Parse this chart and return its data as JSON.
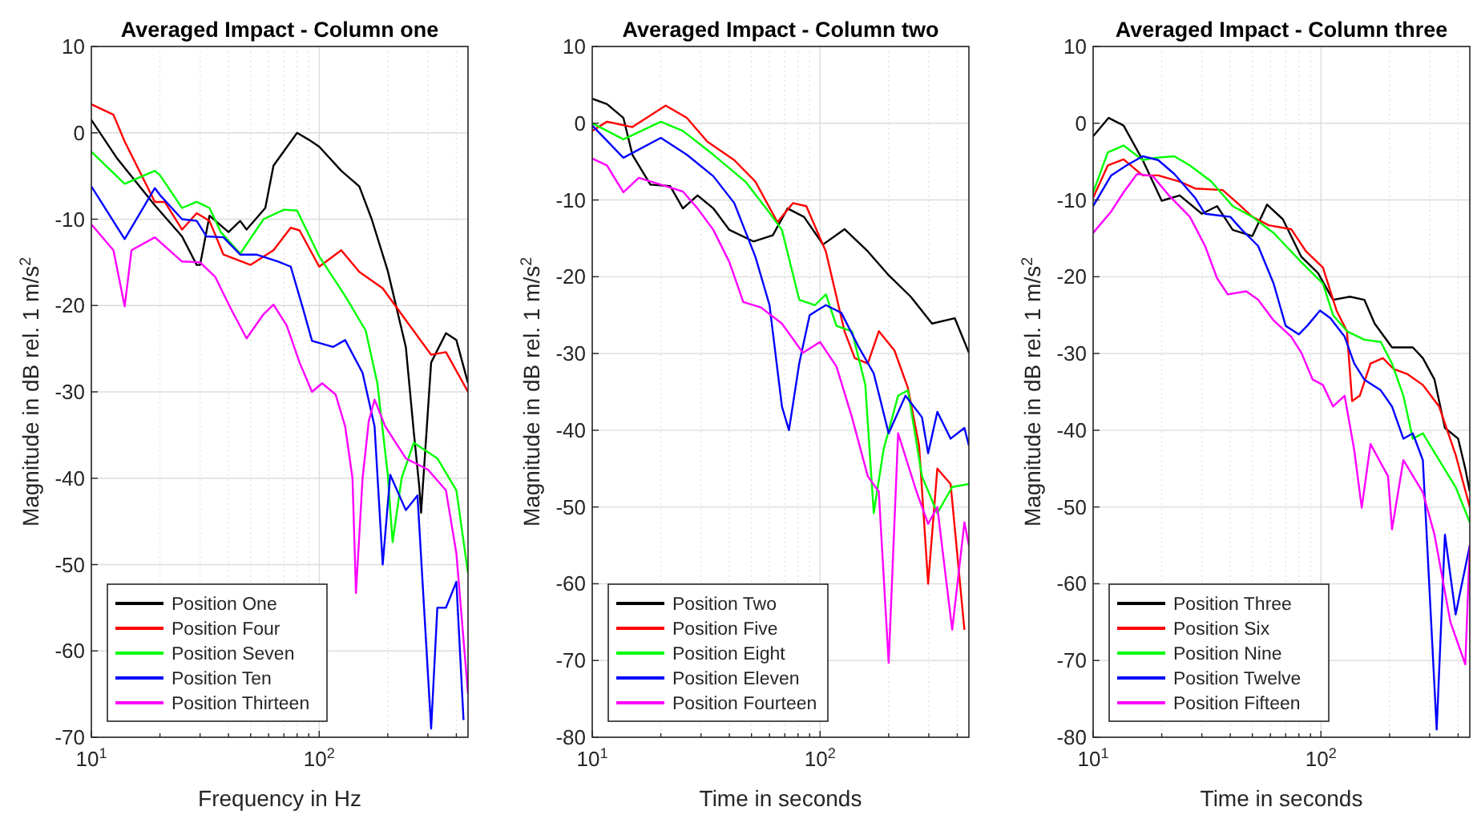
{
  "chart_data": [
    {
      "type": "line",
      "title": "Averaged Impact - Column one",
      "xlabel": "Frequency in Hz",
      "ylabel": "Magnitude in dB rel. 1 m/s$^{2}$",
      "log": "x",
      "grid": true,
      "legend": "bottom left",
      "xlim": [
        10,
        450
      ],
      "ylim": [
        -70,
        10
      ],
      "xticks": [
        {
          "value": 10,
          "label": "10$^{1}$"
        },
        {
          "value": 20,
          "label": null
        },
        {
          "value": 30,
          "label": null
        },
        {
          "value": 40,
          "label": null
        },
        {
          "value": 50,
          "label": null
        },
        {
          "value": 60,
          "label": null
        },
        {
          "value": 70,
          "label": null
        },
        {
          "value": 80,
          "label": null
        },
        {
          "value": 90,
          "label": null
        },
        {
          "value": 100,
          "label": "10$^{2}$"
        },
        {
          "value": 200,
          "label": null
        },
        {
          "value": 300,
          "label": null
        },
        {
          "value": 400,
          "label": null
        }
      ],
      "yticks": [
        -70,
        -60,
        -50,
        -40,
        -30,
        -20,
        -10,
        0,
        10
      ],
      "series": [
        {
          "name": "Position One",
          "color": "#000000",
          "x": [
            10,
            13,
            19,
            25,
            29,
            30,
            33,
            40,
            45,
            48,
            58,
            63,
            80,
            90,
            100,
            125,
            150,
            170,
            200,
            240,
            260,
            275,
            280,
            310,
            360,
            400,
            450
          ],
          "values": [
            1.5,
            -3,
            -8.4,
            -12,
            -15.3,
            -15.3,
            -9.6,
            -11.5,
            -10.2,
            -11.2,
            -8.7,
            -3.8,
            0,
            -0.8,
            -1.6,
            -4.4,
            -6.2,
            -10,
            -16,
            -24.8,
            -34.6,
            -41,
            -44,
            -26.6,
            -23.2,
            -24,
            -29
          ]
        },
        {
          "name": "Position Four",
          "color": "#ff0000",
          "x": [
            10,
            12.5,
            14,
            19,
            21,
            25,
            29,
            33,
            38,
            50,
            63,
            75,
            82,
            100,
            125,
            150,
            190,
            240,
            310,
            360,
            450
          ],
          "values": [
            3.3,
            2.1,
            -1,
            -8,
            -8,
            -11.2,
            -9.3,
            -10.2,
            -14.1,
            -15.3,
            -13.6,
            -11,
            -11.3,
            -15.5,
            -13.6,
            -16.1,
            -18,
            -21.7,
            -25.7,
            -25.4,
            -30
          ]
        },
        {
          "name": "Position Seven",
          "color": "#00ff00",
          "x": [
            10,
            14,
            19,
            20,
            25,
            29,
            33,
            37,
            45,
            57,
            70,
            80,
            100,
            130,
            160,
            180,
            200,
            210,
            230,
            260,
            330,
            400,
            450
          ],
          "values": [
            -2.2,
            -5.9,
            -4.4,
            -4.9,
            -8.7,
            -8,
            -8.7,
            -11.5,
            -14,
            -10,
            -8.9,
            -9,
            -14.3,
            -18.9,
            -22.9,
            -29,
            -39.6,
            -47.4,
            -40,
            -35.9,
            -37.7,
            -41.4,
            -51
          ]
        },
        {
          "name": "Position Ten",
          "color": "#0000ff",
          "x": [
            10,
            14,
            19,
            20,
            25,
            29,
            32,
            38,
            45,
            53,
            66,
            75,
            85,
            93,
            115,
            130,
            155,
            175,
            190,
            205,
            240,
            270,
            310,
            330,
            360,
            400,
            430
          ],
          "values": [
            -6.2,
            -12.3,
            -6.4,
            -7.2,
            -10,
            -10.2,
            -12,
            -12.1,
            -14.1,
            -14.1,
            -14.9,
            -15.5,
            -20.4,
            -24.1,
            -24.8,
            -24,
            -27.8,
            -34,
            -50,
            -39.6,
            -43.7,
            -42,
            -69,
            -55,
            -55,
            -52,
            -68
          ]
        },
        {
          "name": "Position Thirteen",
          "color": "#ff00ff",
          "x": [
            10,
            12.5,
            14,
            15,
            19,
            25,
            30,
            35,
            41,
            48,
            57,
            63,
            72,
            82,
            93,
            103,
            118,
            130,
            140,
            145,
            155,
            165,
            175,
            195,
            240,
            300,
            360,
            400,
            450
          ],
          "values": [
            -10.6,
            -13.6,
            -20.1,
            -13.6,
            -12.1,
            -14.9,
            -15,
            -16.7,
            -20.4,
            -23.8,
            -21,
            -19.9,
            -22.3,
            -26.6,
            -30,
            -29,
            -30.3,
            -34,
            -40,
            -53.3,
            -40,
            -33.4,
            -30.9,
            -34,
            -37.7,
            -39,
            -41.4,
            -48.7,
            -65
          ]
        }
      ]
    },
    {
      "type": "line",
      "title": "Averaged Impact - Column two",
      "xlabel": "Time in seconds",
      "ylabel": "Magnitude in dB rel. 1 m/s$^{2}$",
      "log": "x",
      "grid": true,
      "legend": "bottom left",
      "xlim": [
        10,
        450
      ],
      "ylim": [
        -80,
        10
      ],
      "xticks": [
        {
          "value": 10,
          "label": "10$^{1}$"
        },
        {
          "value": 20,
          "label": null
        },
        {
          "value": 30,
          "label": null
        },
        {
          "value": 40,
          "label": null
        },
        {
          "value": 50,
          "label": null
        },
        {
          "value": 60,
          "label": null
        },
        {
          "value": 70,
          "label": null
        },
        {
          "value": 80,
          "label": null
        },
        {
          "value": 90,
          "label": null
        },
        {
          "value": 100,
          "label": "10$^{2}$"
        },
        {
          "value": 200,
          "label": null
        },
        {
          "value": 300,
          "label": null
        },
        {
          "value": 400,
          "label": null
        }
      ],
      "yticks": [
        -80,
        -70,
        -60,
        -50,
        -40,
        -30,
        -20,
        -10,
        0,
        10
      ],
      "series": [
        {
          "name": "Position Two",
          "color": "#000000",
          "x": [
            10,
            11.6,
            13.7,
            15,
            18,
            22,
            25,
            29,
            34,
            40,
            51,
            62,
            72,
            85,
            103,
            128,
            162,
            200,
            250,
            310,
            390,
            450
          ],
          "values": [
            3.2,
            2.5,
            0.7,
            -4.1,
            -8,
            -8.2,
            -11.1,
            -9.4,
            -11.1,
            -13.9,
            -15.4,
            -14.6,
            -11.1,
            -12.2,
            -15.8,
            -13.8,
            -16.7,
            -19.8,
            -22.6,
            -26.1,
            -25.4,
            -29.9
          ]
        },
        {
          "name": "Position Five",
          "color": "#ff0000",
          "x": [
            10,
            11.6,
            15,
            21,
            26,
            32,
            42,
            52,
            65,
            76,
            87,
            106,
            128,
            142,
            162,
            181,
            212,
            243,
            272,
            298,
            327,
            374,
            430
          ],
          "values": [
            -1,
            0.2,
            -0.5,
            2.3,
            0.7,
            -2.4,
            -4.8,
            -7.6,
            -12.9,
            -10.4,
            -10.8,
            -16.7,
            -27.1,
            -30.6,
            -31.3,
            -27.1,
            -29.6,
            -34.5,
            -42,
            -60,
            -45,
            -47,
            -66
          ]
        },
        {
          "name": "Position Eight",
          "color": "#00ff00",
          "x": [
            10,
            13.7,
            20,
            25,
            34,
            47,
            58,
            68,
            81,
            95,
            106,
            118,
            138,
            158,
            172,
            190,
            220,
            243,
            280,
            327,
            380,
            450
          ],
          "values": [
            0,
            -2.1,
            0.2,
            -1,
            -4.1,
            -7.6,
            -11.1,
            -13.9,
            -23,
            -23.7,
            -22.3,
            -26.4,
            -27.1,
            -34.1,
            -50.8,
            -42.5,
            -35.5,
            -34.8,
            -46,
            -50.8,
            -47.4,
            -47
          ]
        },
        {
          "name": "Position Eleven",
          "color": "#0000ff",
          "x": [
            10,
            13.7,
            20,
            26,
            34,
            42,
            52,
            60,
            68,
            73,
            81,
            90,
            106,
            124,
            148,
            172,
            200,
            237,
            280,
            298,
            327,
            374,
            430,
            450
          ],
          "values": [
            -0.3,
            -4.5,
            -1.9,
            -4.1,
            -6.9,
            -10.4,
            -17.4,
            -23.7,
            -36.9,
            -40,
            -31.3,
            -25,
            -23.7,
            -24.7,
            -29.2,
            -32.6,
            -40.4,
            -35.5,
            -38.3,
            -43,
            -37.6,
            -41.1,
            -39.7,
            -42
          ]
        },
        {
          "name": "Position Fourteen",
          "color": "#ff00ff",
          "x": [
            10,
            11.6,
            13.7,
            16,
            20,
            25,
            29,
            34,
            40,
            46,
            55,
            68,
            84,
            100,
            118,
            138,
            162,
            181,
            200,
            220,
            265,
            298,
            327,
            380,
            430,
            450
          ],
          "values": [
            -4.6,
            -5.5,
            -9,
            -7.1,
            -8,
            -8.9,
            -11.1,
            -13.9,
            -18.1,
            -23.3,
            -24,
            -26.1,
            -29.9,
            -28.5,
            -31.7,
            -38.3,
            -46,
            -48,
            -70.3,
            -40.4,
            -48,
            -52.2,
            -50,
            -66,
            -52,
            -55
          ]
        }
      ]
    },
    {
      "type": "line",
      "title": "Averaged Impact - Column three",
      "xlabel": "Time in seconds",
      "ylabel": "Magnitude in dB rel. 1 m/s$^{2}$",
      "log": "x",
      "grid": true,
      "legend": "bottom left",
      "xlim": [
        10,
        450
      ],
      "ylim": [
        -80,
        10
      ],
      "xticks": [
        {
          "value": 10,
          "label": "10$^{1}$"
        },
        {
          "value": 20,
          "label": null
        },
        {
          "value": 30,
          "label": null
        },
        {
          "value": 40,
          "label": null
        },
        {
          "value": 50,
          "label": null
        },
        {
          "value": 60,
          "label": null
        },
        {
          "value": 70,
          "label": null
        },
        {
          "value": 80,
          "label": null
        },
        {
          "value": 90,
          "label": null
        },
        {
          "value": 100,
          "label": "10$^{2}$"
        },
        {
          "value": 200,
          "label": null
        },
        {
          "value": 300,
          "label": null
        },
        {
          "value": 400,
          "label": null
        }
      ],
      "yticks": [
        -80,
        -70,
        -60,
        -50,
        -40,
        -30,
        -20,
        -10,
        0,
        10
      ],
      "series": [
        {
          "name": "Position Three",
          "color": "#000000",
          "x": [
            10,
            11.7,
            13.6,
            16.5,
            20,
            24,
            30,
            35,
            41,
            50,
            58,
            68,
            82,
            97,
            113,
            134,
            155,
            172,
            205,
            253,
            280,
            315,
            350,
            400,
            430,
            450
          ],
          "values": [
            -1.7,
            0.7,
            -0.3,
            -4.8,
            -10.1,
            -9.4,
            -11.8,
            -10.8,
            -13.9,
            -14.7,
            -10.6,
            -12.5,
            -17.4,
            -19.5,
            -23,
            -22.6,
            -23,
            -26.1,
            -29.2,
            -29.2,
            -30.6,
            -33.4,
            -39.7,
            -41.1,
            -45,
            -48
          ]
        },
        {
          "name": "Position Six",
          "color": "#ff0000",
          "x": [
            10,
            11.6,
            13.6,
            16.5,
            19.3,
            24,
            28,
            37,
            43,
            50,
            59,
            74,
            86,
            102,
            117,
            130,
            137,
            148,
            165,
            187,
            208,
            240,
            280,
            330,
            390,
            450
          ],
          "values": [
            -9.7,
            -5.5,
            -4.7,
            -6.8,
            -6.8,
            -7.6,
            -8.5,
            -8.7,
            -10.4,
            -12.2,
            -13.3,
            -13.8,
            -16.7,
            -18.8,
            -24.4,
            -27.1,
            -36.2,
            -35.5,
            -31.3,
            -30.6,
            -32,
            -32.7,
            -34.1,
            -36.9,
            -43.2,
            -50
          ]
        },
        {
          "name": "Position Nine",
          "color": "#00ff00",
          "x": [
            10,
            11.6,
            13.6,
            16.5,
            18.8,
            22.7,
            26.6,
            33,
            41,
            50,
            62,
            82,
            102,
            113,
            130,
            155,
            183,
            205,
            230,
            253,
            280,
            330,
            390,
            450
          ],
          "values": [
            -9,
            -3.8,
            -2.9,
            -4.8,
            -4.5,
            -4.3,
            -5.5,
            -7.6,
            -10.8,
            -12.2,
            -14.3,
            -18.1,
            -20.9,
            -25,
            -27.1,
            -28.2,
            -28.5,
            -31.3,
            -35.5,
            -41.1,
            -40.4,
            -43.9,
            -47.4,
            -52
          ]
        },
        {
          "name": "Position Twelve",
          "color": "#0000ff",
          "x": [
            10,
            12,
            14,
            16.5,
            19.3,
            22.7,
            28,
            31,
            40,
            45,
            53,
            62,
            70,
            80,
            87,
            99,
            110,
            127,
            140,
            155,
            183,
            205,
            230,
            253,
            280,
            322,
            350,
            390,
            450
          ],
          "values": [
            -10.8,
            -6.8,
            -5.5,
            -4.3,
            -4.8,
            -6.6,
            -9.7,
            -11.8,
            -12.2,
            -13.9,
            -16,
            -20.9,
            -26.4,
            -27.5,
            -26.4,
            -24.4,
            -25.4,
            -27.8,
            -31.3,
            -33.4,
            -34.8,
            -36.9,
            -41.1,
            -40.4,
            -43.9,
            -79,
            -53.6,
            -64,
            -55
          ]
        },
        {
          "name": "Position Fifteen",
          "color": "#ff00ff",
          "x": [
            10,
            12,
            13.6,
            15.6,
            18.3,
            21.5,
            26.6,
            31,
            35,
            39,
            47,
            53,
            62,
            74,
            82,
            92,
            102,
            113,
            127,
            140,
            151,
            165,
            197,
            205,
            230,
            280,
            315,
            370,
            430,
            450
          ],
          "values": [
            -14.3,
            -11.5,
            -9,
            -6.6,
            -6.9,
            -9.4,
            -12.2,
            -16,
            -20.2,
            -22.3,
            -21.9,
            -23,
            -25.7,
            -27.8,
            -29.9,
            -33.4,
            -34.1,
            -36.9,
            -35.5,
            -42.6,
            -50.1,
            -41.8,
            -46,
            -52.9,
            -43.9,
            -48.1,
            -53.6,
            -65,
            -70.5,
            -55
          ]
        }
      ]
    }
  ]
}
